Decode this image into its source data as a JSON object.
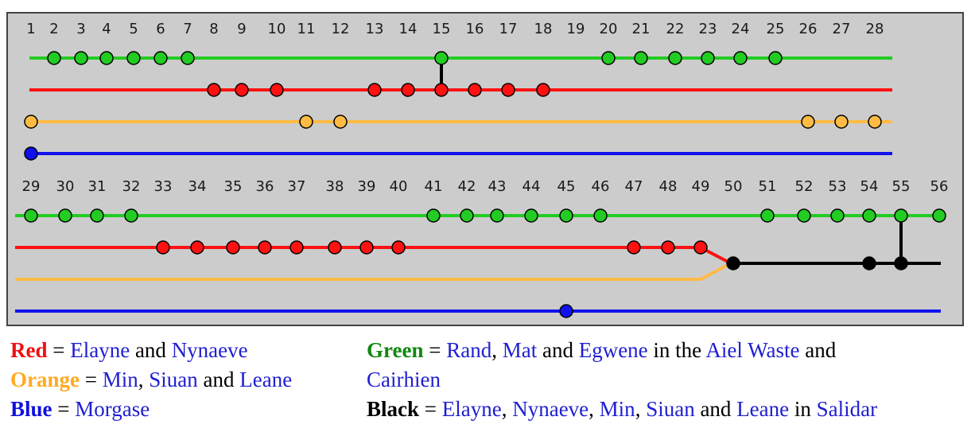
{
  "colors": {
    "panel_bg": "#cccccc",
    "panel_border": "#444444",
    "green": "#22cc22",
    "red": "#ff1111",
    "orange": "#ffbb44",
    "blue": "#1111ee",
    "black": "#000000",
    "link": "#1f1fd0",
    "red_text": "#ee1111",
    "orange_text": "#ffaa22",
    "blue_text": "#1111dd",
    "green_text": "#118811"
  },
  "diagram": {
    "row1_numbers": [
      "1",
      "2",
      "3",
      "4",
      "5",
      "6",
      "7",
      "8",
      "9",
      "10",
      "11",
      "12",
      "13",
      "14",
      "15",
      "16",
      "17",
      "18",
      "19",
      "20",
      "21",
      "22",
      "23",
      "24",
      "25",
      "26",
      "27",
      "28"
    ],
    "row2_numbers": [
      "29",
      "30",
      "31",
      "32",
      "33",
      "34",
      "35",
      "36",
      "37",
      "38",
      "39",
      "40",
      "41",
      "42",
      "43",
      "44",
      "45",
      "46",
      "47",
      "48",
      "49",
      "50",
      "51",
      "52",
      "53",
      "54",
      "55",
      "56"
    ],
    "tracks": {
      "green": [
        2,
        3,
        4,
        5,
        6,
        7,
        15,
        20,
        21,
        22,
        23,
        24,
        25,
        29,
        30,
        31,
        32,
        41,
        42,
        43,
        44,
        45,
        46,
        51,
        52,
        53,
        54,
        55,
        56
      ],
      "red": [
        8,
        9,
        10,
        13,
        14,
        15,
        16,
        17,
        18,
        33,
        34,
        35,
        36,
        37,
        38,
        39,
        40,
        47,
        48,
        49
      ],
      "orange": [
        1,
        11,
        12,
        26,
        27,
        28
      ],
      "blue": [
        1,
        45
      ],
      "black": [
        50,
        54,
        55
      ]
    },
    "junctions": [
      {
        "from": "green",
        "to": "red",
        "chapter": 15
      },
      {
        "from": "green",
        "to": "black",
        "chapter": 55
      }
    ],
    "merge": {
      "tracks": [
        "red",
        "orange"
      ],
      "into": "black",
      "chapter": 50
    }
  },
  "legend": {
    "red": {
      "keyword": "Red",
      "eq": " = ",
      "parts": [
        "Elayne",
        " and ",
        "Nynaeve"
      ]
    },
    "orange": {
      "keyword": "Orange",
      "eq": " = ",
      "parts": [
        "Min",
        ", ",
        "Siuan",
        " and ",
        "Leane"
      ]
    },
    "blue": {
      "keyword": "Blue",
      "eq": " = ",
      "parts": [
        "Morgase"
      ]
    },
    "green": {
      "keyword": "Green",
      "eq": " = ",
      "line1": [
        "Rand",
        ", ",
        "Mat",
        " and ",
        "Egwene",
        " in the ",
        "Aiel Waste",
        " and"
      ],
      "line2": [
        "Cairhien"
      ]
    },
    "black": {
      "keyword": "Black",
      "eq": " = ",
      "parts": [
        "Elayne",
        ", ",
        "Nynaeve",
        ", ",
        "Min",
        ", ",
        "Siuan",
        " and ",
        "Leane",
        " in ",
        "Salidar"
      ]
    }
  }
}
